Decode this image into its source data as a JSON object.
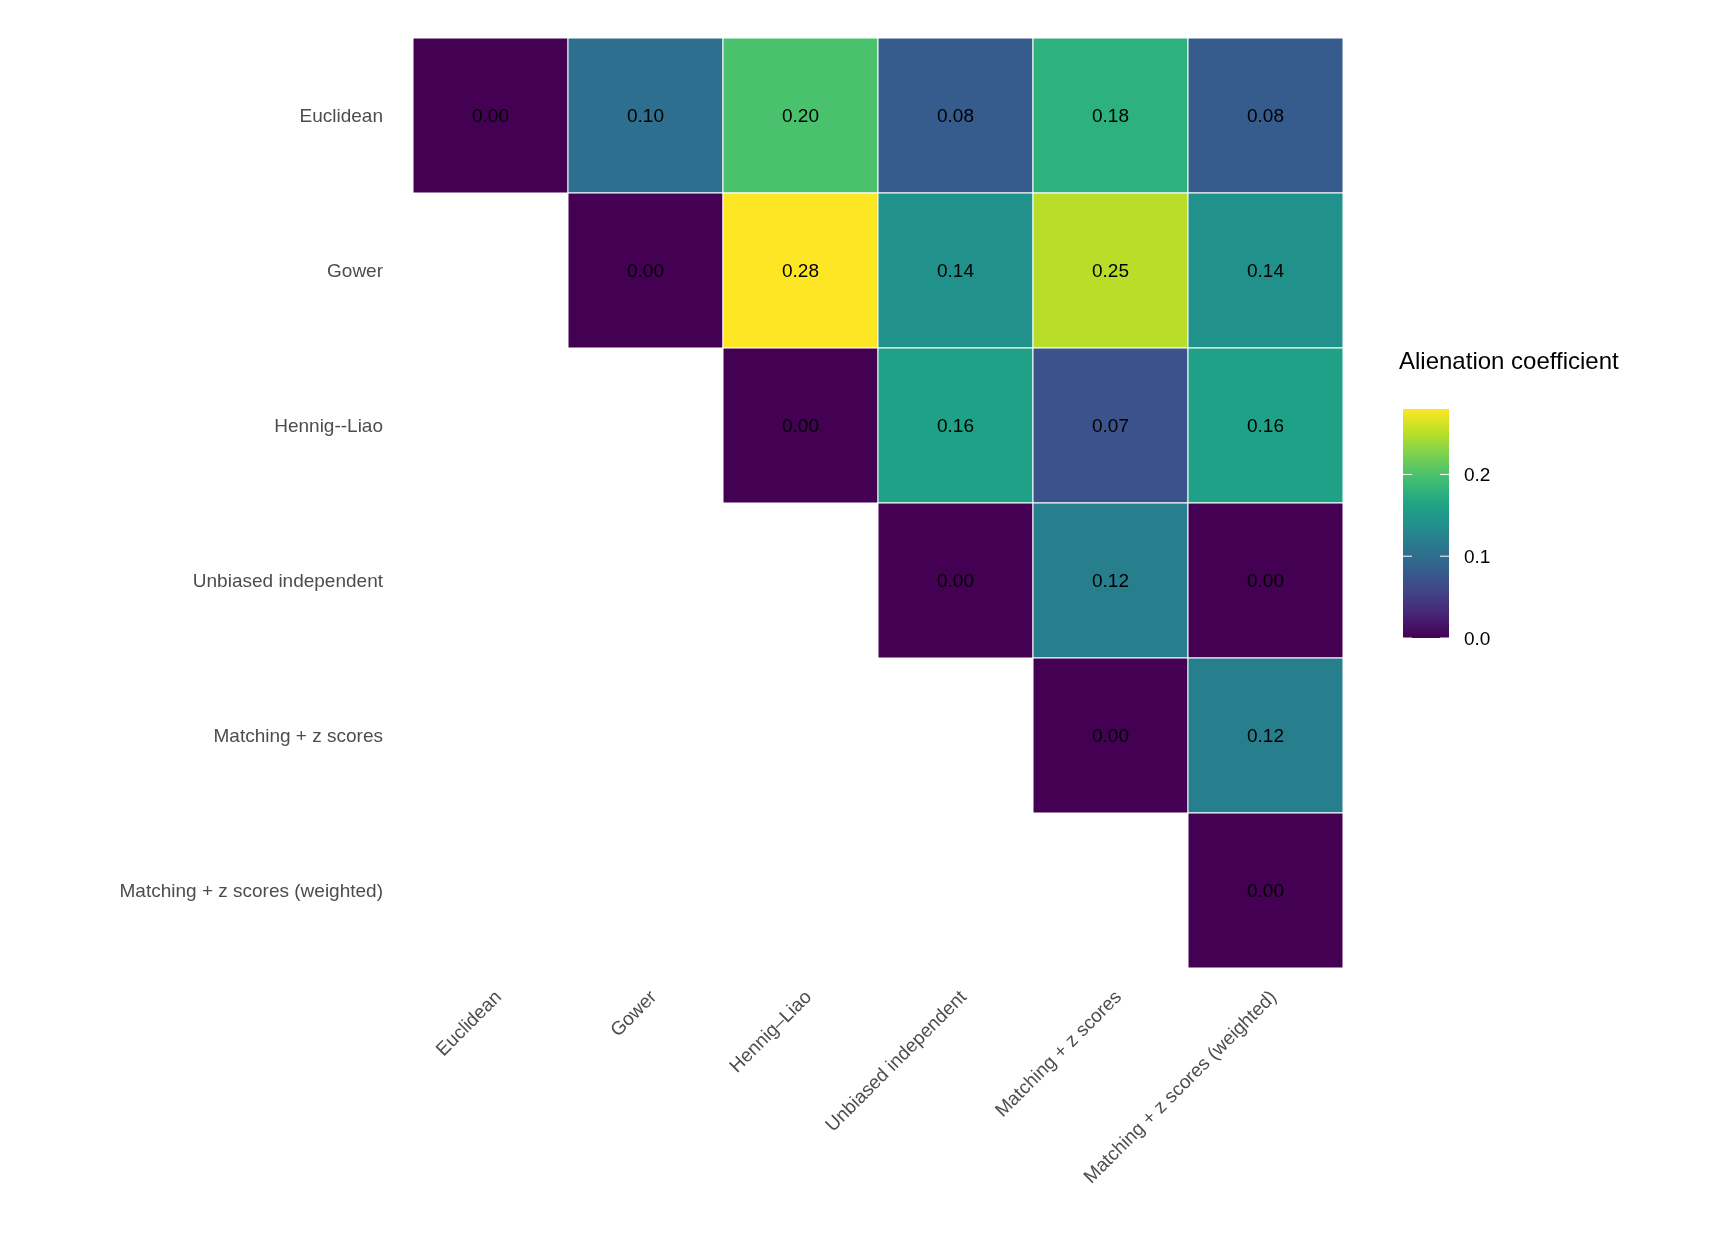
{
  "chart_data": {
    "type": "heatmap",
    "clabel": "Alienation coefficient",
    "categories": [
      "Euclidean",
      "Gower",
      "Hennig–Liao",
      "Unbiased independent",
      "Matching + z scores",
      "Matching + z scores (weighted)"
    ],
    "y_categories": [
      "Euclidean",
      "Gower",
      "Hennig--Liao",
      "Unbiased independent",
      "Matching + z scores",
      "Matching + z scores (weighted)"
    ],
    "cells": [
      [
        0.0,
        0.1,
        0.2,
        0.08,
        0.18,
        0.08
      ],
      [
        null,
        0.0,
        0.28,
        0.14,
        0.25,
        0.14
      ],
      [
        null,
        null,
        0.0,
        0.16,
        0.07,
        0.16
      ],
      [
        null,
        null,
        null,
        0.0,
        0.12,
        0.0
      ],
      [
        null,
        null,
        null,
        null,
        0.0,
        0.12
      ],
      [
        null,
        null,
        null,
        null,
        null,
        0.0
      ]
    ],
    "cell_labels": [
      [
        "0.00",
        "0.10",
        "0.20",
        "0.08",
        "0.18",
        "0.08"
      ],
      [
        null,
        "0.00",
        "0.28",
        "0.14",
        "0.25",
        "0.14"
      ],
      [
        null,
        null,
        "0.00",
        "0.16",
        "0.07",
        "0.16"
      ],
      [
        null,
        null,
        null,
        "0.00",
        "0.12",
        "0.00"
      ],
      [
        null,
        null,
        null,
        null,
        "0.00",
        "0.12"
      ],
      [
        null,
        null,
        null,
        null,
        null,
        "0.00"
      ]
    ],
    "clim": [
      0,
      0.28
    ],
    "cticks": [
      {
        "value": 0,
        "label": "0.0"
      },
      {
        "value": 0.1,
        "label": "0.1"
      },
      {
        "value": 0.2,
        "label": "0.2"
      }
    ]
  }
}
